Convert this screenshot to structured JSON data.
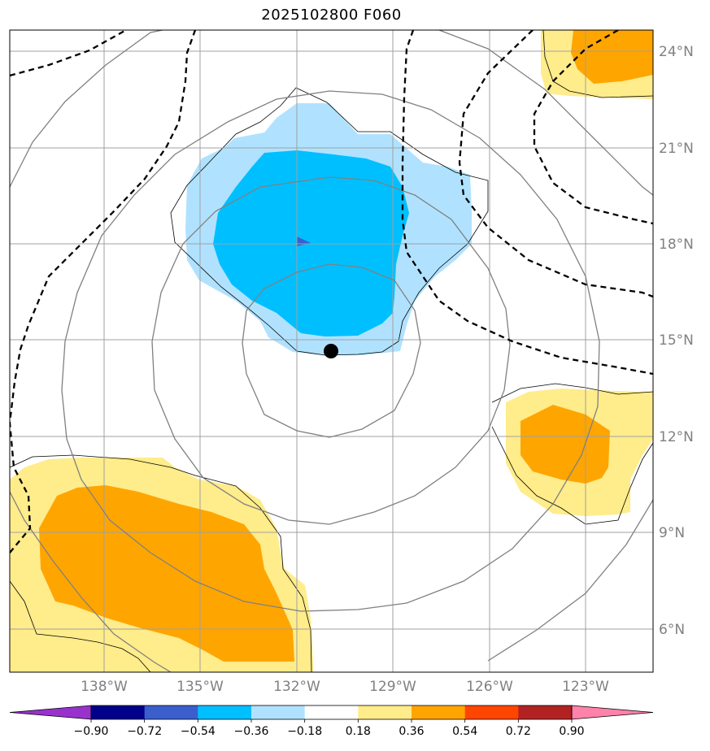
{
  "title": "2025102800 F060",
  "lon_labels": [
    "138°W",
    "135°W",
    "132°W",
    "129°W",
    "126°W",
    "123°W"
  ],
  "lat_labels": [
    "24°N",
    "21°N",
    "18°N",
    "15°N",
    "12°N",
    "9°N",
    "6°N"
  ],
  "colorbar": {
    "colors": [
      "#9932CC",
      "#00008B",
      "#3A5FCD",
      "#00BFFF",
      "#B0E2FF",
      "#FFFFFF",
      "#FFEC8B",
      "#FFA500",
      "#FF4500",
      "#B22222",
      "#FF82AB"
    ],
    "tick_labels": [
      "−0.90",
      "−0.72",
      "−0.54",
      "−0.36",
      "−0.18",
      "0.18",
      "0.36",
      "0.54",
      "0.72",
      "0.90"
    ]
  },
  "colors": {
    "light_blue": "#B0E2FF",
    "deep_sky_blue": "#00BFFF",
    "royal_blue": "#3A5FCD",
    "light_yellow": "#FFEC8B",
    "orange": "#FFA500",
    "grid": "#A0A0A0",
    "circle_contour": "#808080",
    "dashed_contour": "#000000",
    "storm_center": "#000000"
  },
  "storm_center": {
    "lon": -130.9,
    "lat": 14.7
  }
}
